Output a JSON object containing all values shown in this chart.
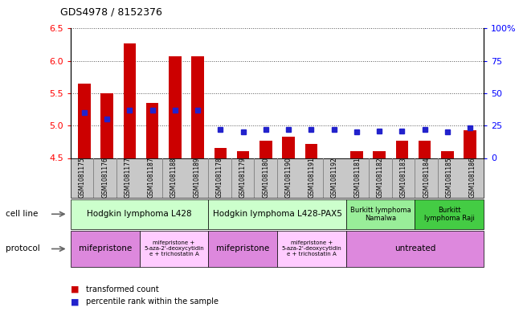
{
  "title": "GDS4978 / 8152376",
  "samples": [
    "GSM1081175",
    "GSM1081176",
    "GSM1081177",
    "GSM1081187",
    "GSM1081188",
    "GSM1081189",
    "GSM1081178",
    "GSM1081179",
    "GSM1081180",
    "GSM1081190",
    "GSM1081191",
    "GSM1081192",
    "GSM1081181",
    "GSM1081182",
    "GSM1081183",
    "GSM1081184",
    "GSM1081185",
    "GSM1081186"
  ],
  "transformed_count": [
    5.65,
    5.5,
    6.27,
    5.35,
    6.07,
    6.07,
    4.65,
    4.6,
    4.77,
    4.83,
    4.72,
    4.5,
    4.6,
    4.6,
    4.77,
    4.77,
    4.6,
    4.93
  ],
  "percentile_rank": [
    35,
    30,
    37,
    37,
    37,
    37,
    22,
    20,
    22,
    22,
    22,
    22,
    20,
    21,
    21,
    22,
    20,
    23
  ],
  "ymin": 4.5,
  "ymax": 6.5,
  "bar_color": "#cc0000",
  "dot_color": "#2222cc",
  "cell_line_groups": [
    {
      "label": "Hodgkin lymphoma L428",
      "start": 0,
      "end": 6,
      "color": "#ccffcc"
    },
    {
      "label": "Hodgkin lymphoma L428-PAX5",
      "start": 6,
      "end": 12,
      "color": "#ccffcc"
    },
    {
      "label": "Burkitt lymphoma\nNamalwa",
      "start": 12,
      "end": 15,
      "color": "#99ee99"
    },
    {
      "label": "Burkitt\nlymphoma Raji",
      "start": 15,
      "end": 18,
      "color": "#44cc44"
    }
  ],
  "protocol_groups": [
    {
      "label": "mifepristone",
      "start": 0,
      "end": 3,
      "color": "#dd88dd"
    },
    {
      "label": "mifepristone +\n5-aza-2'-deoxycytidin\ne + trichostatin A",
      "start": 3,
      "end": 6,
      "color": "#ffccff"
    },
    {
      "label": "mifepristone",
      "start": 6,
      "end": 9,
      "color": "#dd88dd"
    },
    {
      "label": "mifepristone +\n5-aza-2'-deoxycytidin\ne + trichostatin A",
      "start": 9,
      "end": 12,
      "color": "#ffccff"
    },
    {
      "label": "untreated",
      "start": 12,
      "end": 18,
      "color": "#dd88dd"
    }
  ],
  "background_color": "#ffffff",
  "grid_color": "#555555",
  "yticks_left": [
    4.5,
    5.0,
    5.5,
    6.0,
    6.5
  ],
  "yticks_right": [
    0,
    25,
    50,
    75,
    100
  ],
  "xtick_bg": "#c8c8c8",
  "cell_line_label": "cell line",
  "protocol_label": "protocol",
  "legend_bar_label": "transformed count",
  "legend_dot_label": "percentile rank within the sample"
}
